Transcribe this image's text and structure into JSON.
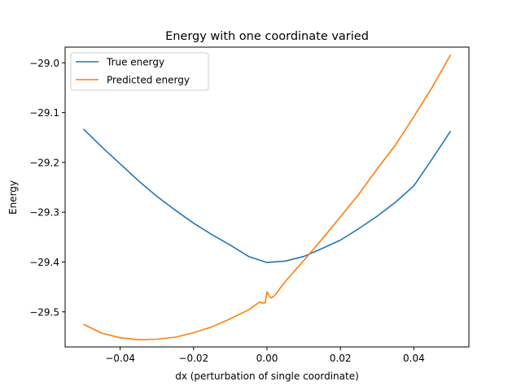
{
  "chart_data": {
    "type": "line",
    "title": "Energy with one coordinate varied",
    "xlabel": "dx (perturbation of single coordinate)",
    "ylabel": "Energy",
    "xlim": [
      -0.055,
      0.055
    ],
    "ylim": [
      -29.5705,
      -28.9685
    ],
    "xticks": [
      -0.04,
      -0.02,
      0.0,
      0.02,
      0.04
    ],
    "xtick_labels": [
      "−0.04",
      "−0.02",
      "0.00",
      "0.02",
      "0.04"
    ],
    "yticks": [
      -29.5,
      -29.4,
      -29.3,
      -29.2,
      -29.1,
      -29.0
    ],
    "ytick_labels": [
      "−29.5",
      "−29.4",
      "−29.3",
      "−29.2",
      "−29.1",
      "−29.0"
    ],
    "grid": false,
    "legend_position": "upper-left",
    "series": [
      {
        "name": "True energy",
        "color": "#1f77b4",
        "x": [
          -0.05,
          -0.045,
          -0.04,
          -0.035,
          -0.03,
          -0.025,
          -0.02,
          -0.015,
          -0.01,
          -0.005,
          0.0,
          0.005,
          0.01,
          0.015,
          0.02,
          0.025,
          0.03,
          0.035,
          0.04,
          0.045,
          0.05
        ],
        "y": [
          -29.133,
          -29.169,
          -29.203,
          -29.237,
          -29.268,
          -29.296,
          -29.322,
          -29.345,
          -29.366,
          -29.389,
          -29.401,
          -29.398,
          -29.389,
          -29.373,
          -29.356,
          -29.333,
          -29.308,
          -29.28,
          -29.247,
          -29.193,
          -29.137
        ]
      },
      {
        "name": "Predicted energy",
        "color": "#ff7f0e",
        "x": [
          -0.05,
          -0.045,
          -0.04,
          -0.035,
          -0.03,
          -0.025,
          -0.02,
          -0.015,
          -0.01,
          -0.005,
          -0.002,
          -0.0015,
          -0.0005,
          0.0,
          0.0008,
          0.0012,
          0.002,
          0.005,
          0.01,
          0.015,
          0.02,
          0.025,
          0.03,
          0.035,
          0.04,
          0.045,
          0.05
        ],
        "y": [
          -29.525,
          -29.543,
          -29.552,
          -29.556,
          -29.555,
          -29.551,
          -29.542,
          -29.53,
          -29.514,
          -29.496,
          -29.48,
          -29.482,
          -29.482,
          -29.46,
          -29.47,
          -29.472,
          -29.468,
          -29.439,
          -29.397,
          -29.354,
          -29.309,
          -29.264,
          -29.213,
          -29.165,
          -29.108,
          -29.049,
          -28.984
        ]
      }
    ]
  }
}
